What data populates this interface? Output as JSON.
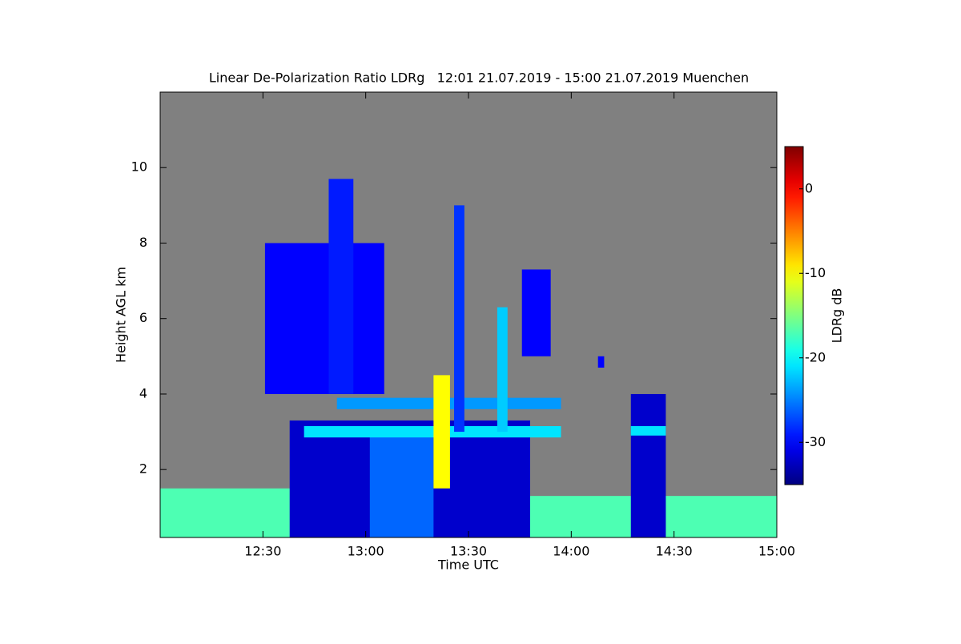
{
  "chart_data": {
    "type": "heatmap",
    "title": "Linear De-Polarization Ratio LDRg   12:01 21.07.2019 - 15:00 21.07.2019 Muenchen",
    "x_label": "Time UTC",
    "y_label": "Height AGL km",
    "colorbar_label": "LDRg dB",
    "colormap": "jet",
    "background": "#808080",
    "xlim": [
      12.0,
      15.0
    ],
    "xticks": [
      {
        "value": 12.5,
        "label": "12:30"
      },
      {
        "value": 13.0,
        "label": "13:00"
      },
      {
        "value": 13.5,
        "label": "13:30"
      },
      {
        "value": 14.0,
        "label": "14:00"
      },
      {
        "value": 14.5,
        "label": "14:30"
      },
      {
        "value": 15.0,
        "label": "15:00"
      }
    ],
    "ylim": [
      0.2,
      12
    ],
    "yticks": [
      2,
      4,
      6,
      8,
      10
    ],
    "clim": [
      -35,
      5
    ],
    "cticks": [
      0,
      -10,
      -20,
      -30
    ],
    "cells": [
      {
        "x": [
          12.0,
          12.68
        ],
        "y": [
          0.2,
          1.5
        ],
        "value": -17
      },
      {
        "x": [
          13.76,
          15.0
        ],
        "y": [
          0.2,
          1.3
        ],
        "value": -17
      },
      {
        "x": [
          12.63,
          13.8
        ],
        "y": [
          0.2,
          3.3
        ],
        "value": -32
      },
      {
        "x": [
          12.51,
          13.09
        ],
        "y": [
          4.0,
          8.0
        ],
        "value": -30
      },
      {
        "x": [
          12.82,
          12.94
        ],
        "y": [
          4.0,
          9.7
        ],
        "value": -29
      },
      {
        "x": [
          13.02,
          13.33
        ],
        "y": [
          0.2,
          3.0
        ],
        "value": -26
      },
      {
        "x": [
          12.86,
          13.95
        ],
        "y": [
          3.6,
          3.9
        ],
        "value": -24
      },
      {
        "x": [
          12.7,
          13.95
        ],
        "y": [
          2.85,
          3.15
        ],
        "value": -21
      },
      {
        "x": [
          13.43,
          13.48
        ],
        "y": [
          3.0,
          9.0
        ],
        "value": -28
      },
      {
        "x": [
          13.64,
          13.69
        ],
        "y": [
          3.0,
          6.3
        ],
        "value": -22
      },
      {
        "x": [
          13.33,
          13.41
        ],
        "y": [
          1.5,
          4.5
        ],
        "value": -10
      },
      {
        "x": [
          13.76,
          13.9
        ],
        "y": [
          5.0,
          7.3
        ],
        "value": -30
      },
      {
        "x": [
          14.13,
          14.16
        ],
        "y": [
          4.7,
          5.0
        ],
        "value": -30
      },
      {
        "x": [
          14.29,
          14.46
        ],
        "y": [
          0.2,
          4.0
        ],
        "value": -32
      },
      {
        "x": [
          14.29,
          14.46
        ],
        "y": [
          2.9,
          3.15
        ],
        "value": -21
      }
    ]
  }
}
